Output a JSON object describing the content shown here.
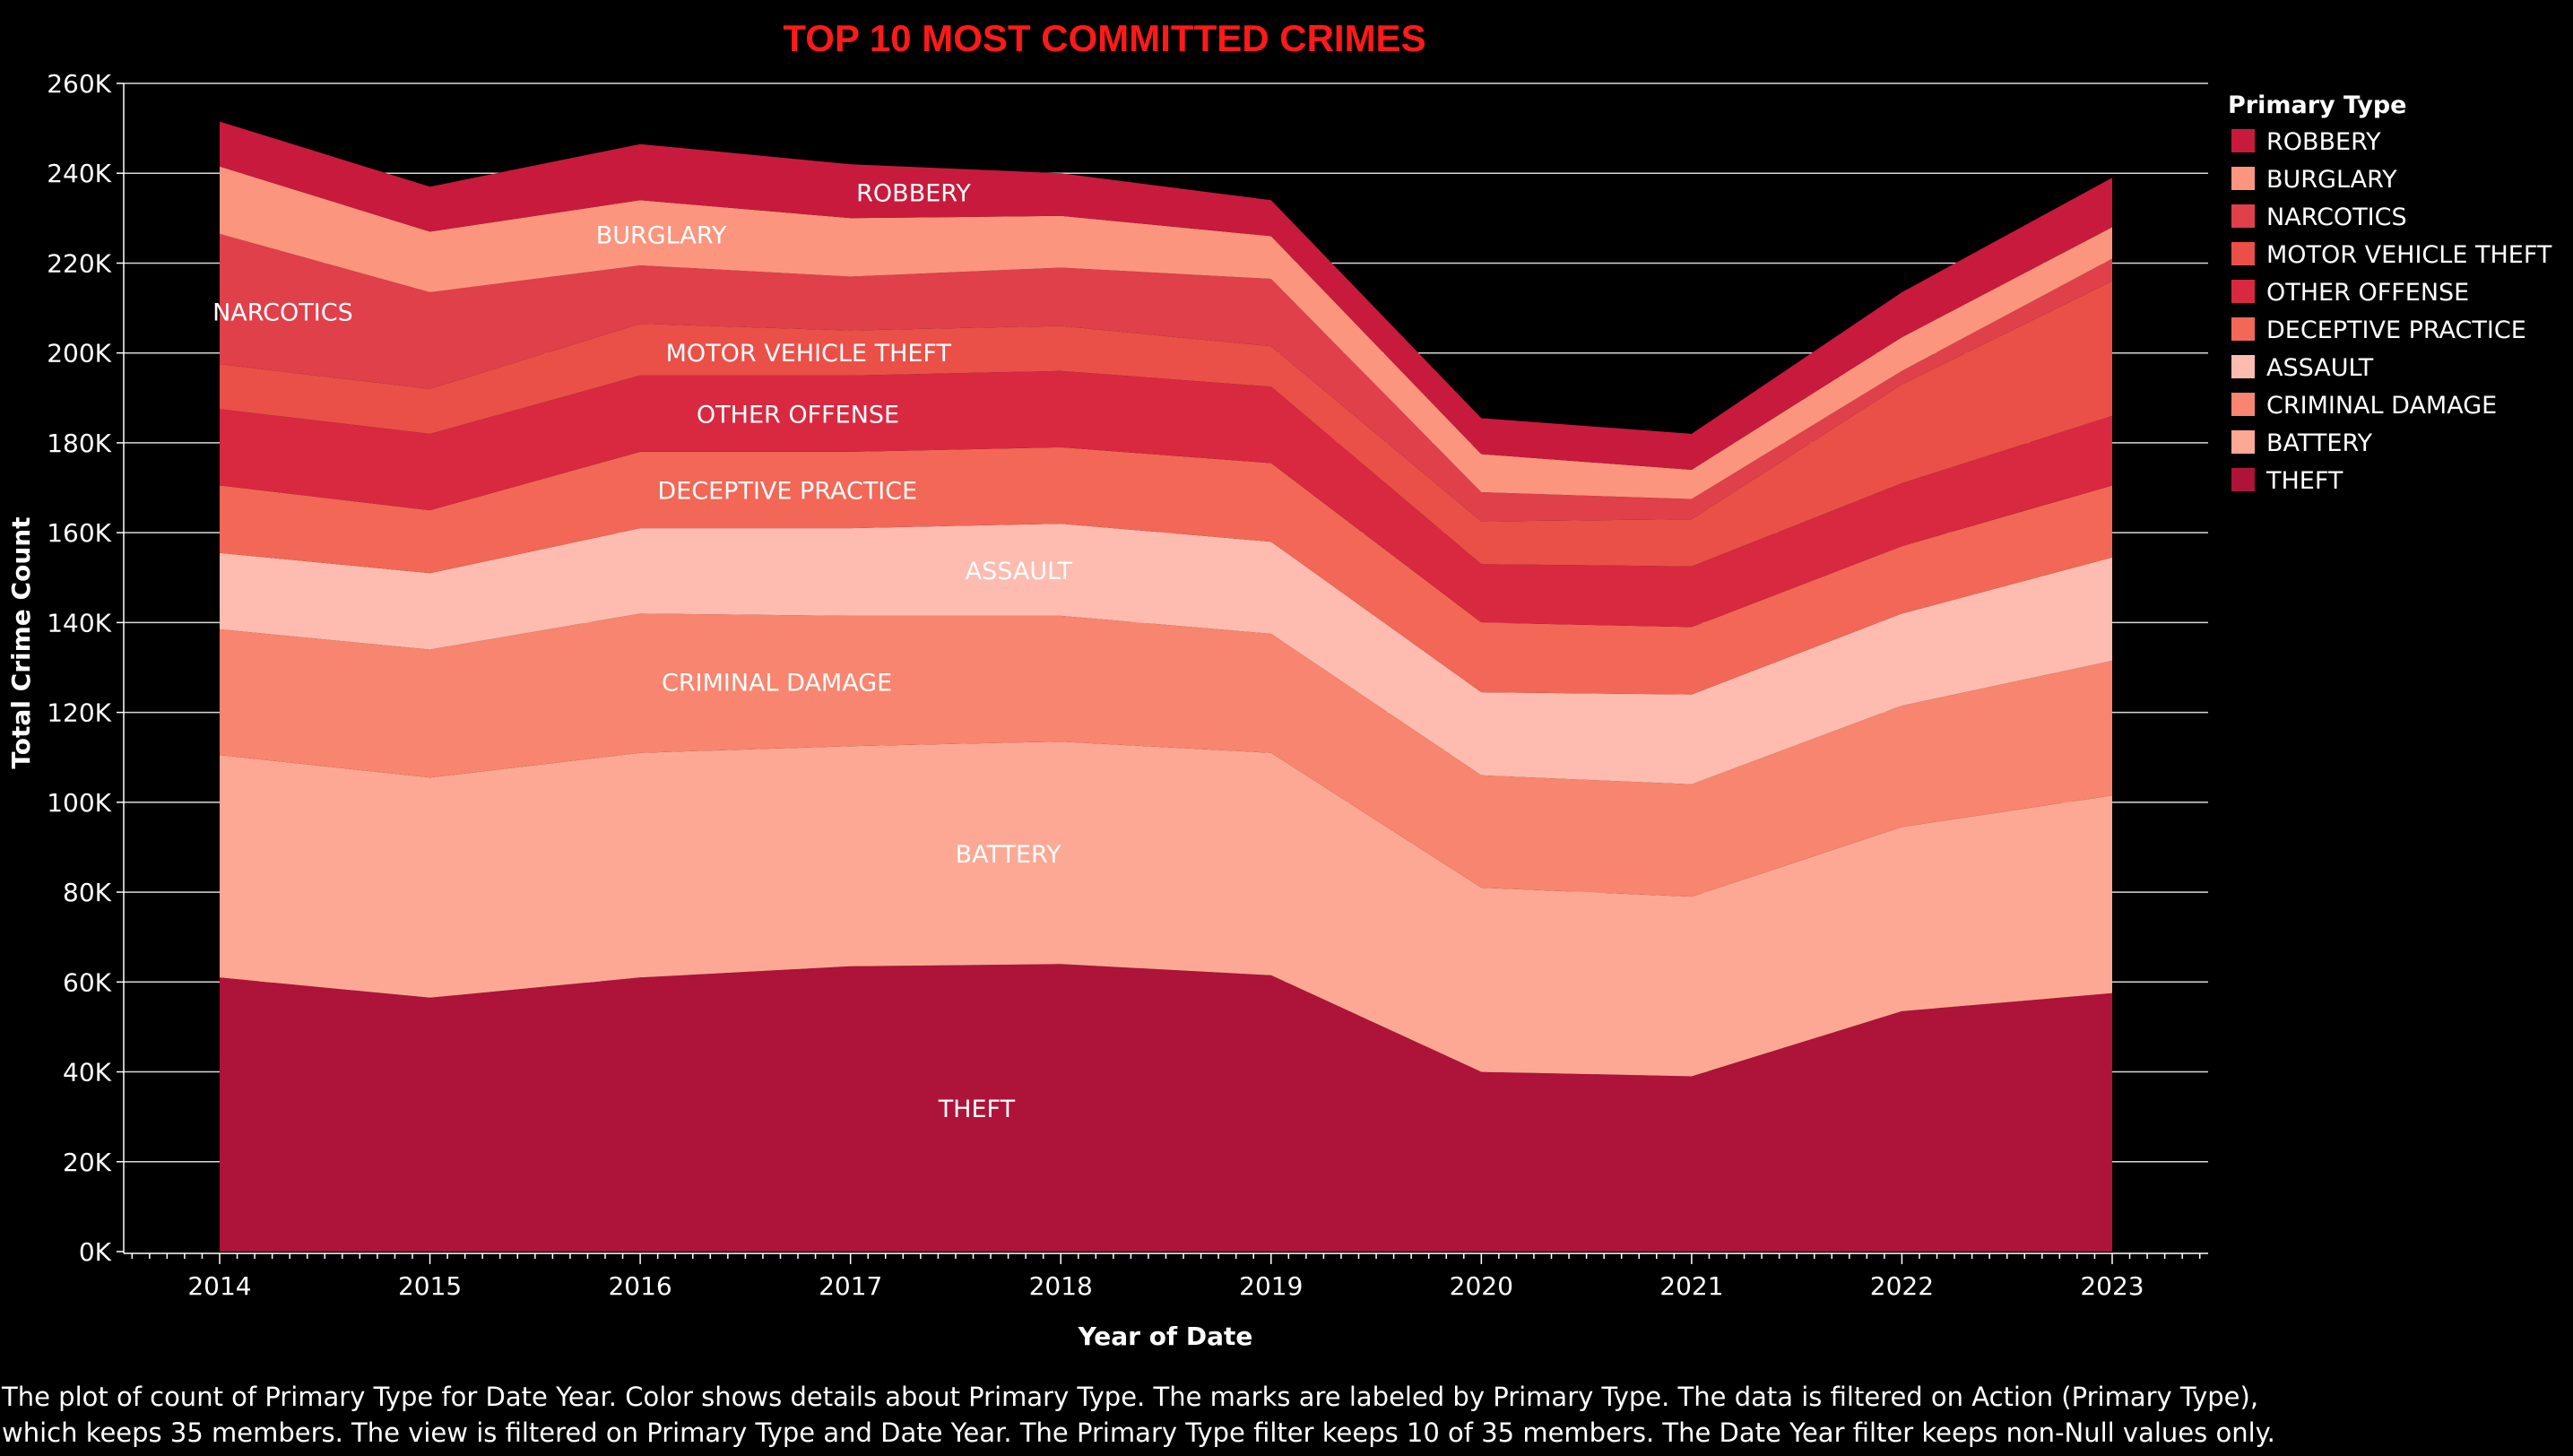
{
  "chart_data": {
    "type": "area",
    "title": "TOP 10 MOST COMMITTED CRIMES",
    "title_color": "#ff1a1a",
    "xlabel": "Year of Date",
    "ylabel": "Total Crime Count",
    "x": [
      "2014",
      "2015",
      "2016",
      "2017",
      "2018",
      "2019",
      "2020",
      "2021",
      "2022",
      "2023"
    ],
    "ylim": [
      0,
      260000
    ],
    "y_ticks": [
      {
        "value": 0,
        "label": "0K"
      },
      {
        "value": 20000,
        "label": "20K"
      },
      {
        "value": 40000,
        "label": "40K"
      },
      {
        "value": 60000,
        "label": "60K"
      },
      {
        "value": 80000,
        "label": "80K"
      },
      {
        "value": 100000,
        "label": "100K"
      },
      {
        "value": 120000,
        "label": "120K"
      },
      {
        "value": 140000,
        "label": "140K"
      },
      {
        "value": 160000,
        "label": "160K"
      },
      {
        "value": 180000,
        "label": "180K"
      },
      {
        "value": 200000,
        "label": "200K"
      },
      {
        "value": 220000,
        "label": "220K"
      },
      {
        "value": 240000,
        "label": "240K"
      },
      {
        "value": 260000,
        "label": "260K"
      }
    ],
    "stacked": true,
    "grid": "horizontal",
    "legend_title": "Primary Type",
    "legend_position": "right",
    "series": [
      {
        "name": "THEFT",
        "color": "#ae1339",
        "label_at": 3.6,
        "values": [
          61000,
          56500,
          61000,
          63500,
          64000,
          61500,
          40000,
          39000,
          53500,
          57500
        ]
      },
      {
        "name": "BATTERY",
        "color": "#fda894",
        "label_at": 3.75,
        "values": [
          49500,
          49000,
          50000,
          49000,
          49500,
          49500,
          41000,
          40000,
          41000,
          44000
        ]
      },
      {
        "name": "CRIMINAL DAMAGE",
        "color": "#f8856f",
        "label_at": 2.65,
        "values": [
          28000,
          28500,
          31000,
          29000,
          28000,
          26500,
          25000,
          25000,
          27000,
          30000
        ]
      },
      {
        "name": "ASSAULT",
        "color": "#fdbcaf",
        "label_at": 3.8,
        "values": [
          17000,
          17000,
          19000,
          19500,
          20500,
          20500,
          18500,
          20000,
          20500,
          23000
        ]
      },
      {
        "name": "DECEPTIVE PRACTICE",
        "color": "#f26756",
        "label_at": 2.7,
        "values": [
          15000,
          14000,
          17000,
          17000,
          17000,
          17500,
          15500,
          15000,
          15000,
          16000
        ]
      },
      {
        "name": "OTHER OFFENSE",
        "color": "#d82940",
        "label_at": 2.75,
        "values": [
          17000,
          17000,
          17000,
          17000,
          17000,
          17000,
          13000,
          13500,
          14000,
          15500
        ]
      },
      {
        "name": "MOTOR VEHICLE THEFT",
        "color": "#ea5047",
        "label_at": 2.8,
        "values": [
          10000,
          10000,
          11500,
          10000,
          10000,
          9000,
          9500,
          10500,
          22000,
          30000
        ]
      },
      {
        "name": "NARCOTICS",
        "color": "#e0404a",
        "label_at": 0.3,
        "values": [
          29000,
          21500,
          13000,
          12000,
          13000,
          15000,
          6500,
          4500,
          3000,
          5000
        ]
      },
      {
        "name": "BURGLARY",
        "color": "#fb957e",
        "label_at": 2.1,
        "values": [
          15000,
          13500,
          14500,
          13000,
          11500,
          9500,
          8500,
          6500,
          7500,
          7000
        ]
      },
      {
        "name": "ROBBERY",
        "color": "#c81a3c",
        "label_at": 3.3,
        "values": [
          10000,
          10000,
          12500,
          12000,
          9500,
          8000,
          8000,
          8000,
          10000,
          11000
        ]
      }
    ],
    "legend_order": [
      "ROBBERY",
      "BURGLARY",
      "NARCOTICS",
      "MOTOR VEHICLE THEFT",
      "OTHER OFFENSE",
      "DECEPTIVE PRACTICE",
      "ASSAULT",
      "CRIMINAL DAMAGE",
      "BATTERY",
      "THEFT"
    ]
  },
  "caption": {
    "line1": "The plot of count of Primary Type for Date Year.  Color shows details about Primary Type.  The marks are labeled by Primary Type. The data is filtered on Action (Primary Type),",
    "line2": "which keeps 35 members. The view is filtered on Primary Type and Date Year. The Primary Type filter keeps 10 of 35 members. The Date Year filter keeps non-Null values only."
  }
}
